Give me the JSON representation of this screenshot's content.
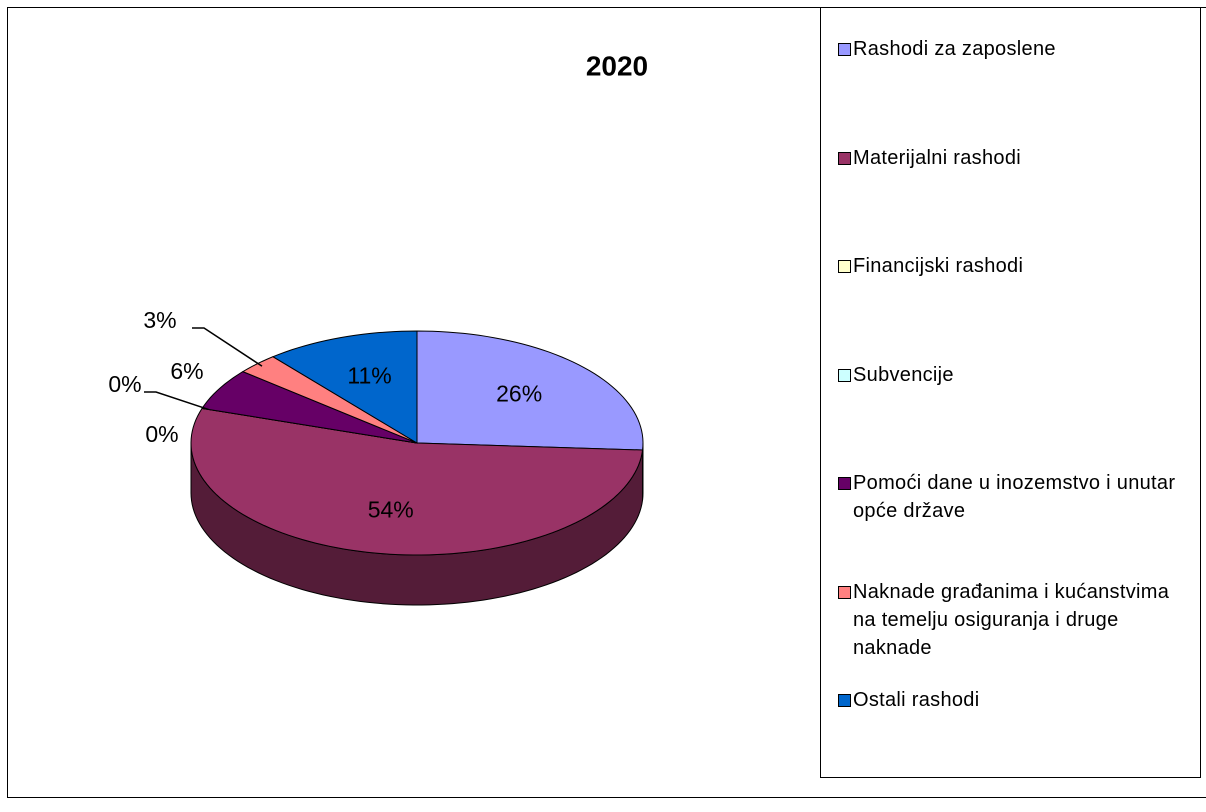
{
  "chart_data": {
    "type": "pie",
    "title": "2020",
    "categories": [
      "Rashodi za zaposlene",
      "Materijalni rashodi",
      "Financijski rashodi",
      "Subvencije",
      "Pomoći dane u inozemstvo i unutar opće države",
      "Naknade građanima i kućanstvima na temelju osiguranja i druge naknade",
      "Ostali rashodi"
    ],
    "values": [
      26,
      54,
      0,
      0,
      6,
      3,
      11
    ],
    "value_labels": [
      "26%",
      "54%",
      "0%",
      "0%",
      "6%",
      "3%",
      "11%"
    ],
    "colors": [
      "#9999ff",
      "#993366",
      "#ffffcc",
      "#ccffff",
      "#660066",
      "#ff8080",
      "#0066cc"
    ],
    "legend": "right"
  }
}
